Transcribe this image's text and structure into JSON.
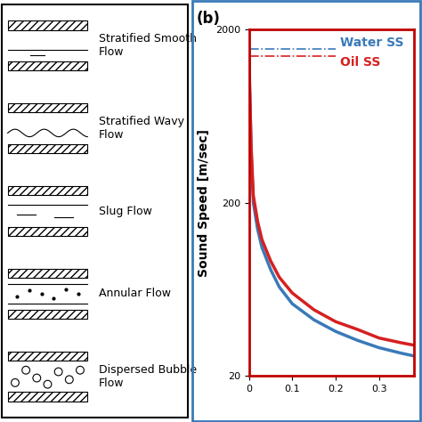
{
  "diagram": {
    "regimes": [
      "Stratified Smooth\nFlow",
      "Stratified Wavy\nFlow",
      "Slug Flow",
      "Annular Flow",
      "Dispersed Bubble\nFlow"
    ]
  },
  "chart_data": {
    "type": "line",
    "panel_label": "(b)",
    "ylabel": "Sound Speed [m/sec]",
    "log": "y",
    "grid": false,
    "xlim": [
      0,
      0.38
    ],
    "xticks": [
      0,
      0.1,
      0.2,
      0.3
    ],
    "ylim": [
      20,
      2000
    ],
    "yticks": [
      20,
      200,
      2000
    ],
    "x": [
      0,
      0.005,
      0.01,
      0.02,
      0.03,
      0.05,
      0.07,
      0.1,
      0.15,
      0.2,
      0.25,
      0.3,
      0.35,
      0.38
    ],
    "series": [
      {
        "name": "Water",
        "color": "#3a7ab8",
        "values": [
          1480,
          400,
          200,
          140,
          110,
          82,
          65,
          52,
          42,
          36,
          32,
          29,
          27,
          26
        ]
      },
      {
        "name": "Oil",
        "color": "#d62020",
        "values": [
          1300,
          420,
          220,
          155,
          122,
          92,
          74,
          60,
          48,
          41,
          37,
          33,
          31,
          30
        ]
      }
    ],
    "reference_lines": [
      {
        "name": "Water SS",
        "value": 1550,
        "x_end": 0.2,
        "color": "#3a7ab8",
        "line_style": "dashdot"
      },
      {
        "name": "Oil SS",
        "value": 1400,
        "x_end": 0.2,
        "color": "#d62020",
        "line_style": "dashdot"
      }
    ]
  }
}
